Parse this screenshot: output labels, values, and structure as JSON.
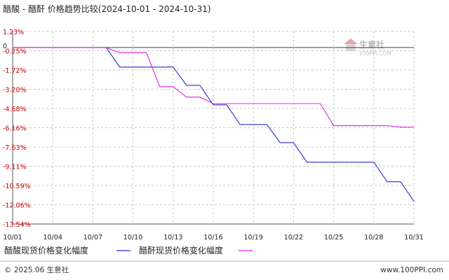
{
  "chart_data": {
    "type": "line",
    "title": "醋酸 - 醋酐 价格趋势比较(2024-10-01 - 2024-10-31)",
    "x": [
      "10/01",
      "10/02",
      "10/03",
      "10/04",
      "10/05",
      "10/06",
      "10/07",
      "10/08",
      "10/09",
      "10/10",
      "10/11",
      "10/12",
      "10/13",
      "10/14",
      "10/15",
      "10/16",
      "10/17",
      "10/18",
      "10/19",
      "10/20",
      "10/21",
      "10/22",
      "10/23",
      "10/24",
      "10/25",
      "10/26",
      "10/27",
      "10/28",
      "10/29",
      "10/30",
      "10/31"
    ],
    "x_tick_labels": [
      "10/01",
      "10/04",
      "10/07",
      "10/10",
      "10/13",
      "10/16",
      "10/19",
      "10/22",
      "10/25",
      "10/28",
      "10/31"
    ],
    "y_tick_labels": [
      "1.23%",
      "-0.25%",
      "-1.72%",
      "-3.20%",
      "-4.68%",
      "-6.16%",
      "-7.63%",
      "-9.11%",
      "-10.59%",
      "-12.06%",
      "-13.54%"
    ],
    "zero_label": "0",
    "ylim": [
      -13.54,
      1.23
    ],
    "series": [
      {
        "name": "醋酸现货价格变化幅度",
        "color": "#2a2acc",
        "values": [
          0,
          0,
          0,
          0,
          0,
          0,
          0,
          0,
          -1.5,
          -1.5,
          -1.5,
          -1.5,
          -1.5,
          -2.9,
          -2.9,
          -4.4,
          -4.4,
          -5.9,
          -5.9,
          -5.9,
          -7.3,
          -7.3,
          -8.8,
          -8.8,
          -8.8,
          -8.8,
          -8.8,
          -8.8,
          -10.3,
          -10.3,
          -11.8
        ]
      },
      {
        "name": "醋酐现货价格变化幅度",
        "color": "#e020e0",
        "values": [
          0,
          0,
          0,
          0,
          0,
          0,
          0,
          0,
          -0.4,
          -0.4,
          -0.4,
          -3.0,
          -3.0,
          -3.8,
          -3.8,
          -4.3,
          -4.3,
          -4.3,
          -4.3,
          -4.3,
          -4.3,
          -4.3,
          -4.3,
          -4.3,
          -6.0,
          -6.0,
          -6.0,
          -6.0,
          -6.0,
          -6.1,
          -6.1
        ]
      }
    ],
    "grid": true,
    "legend_position": "bottom-left"
  },
  "watermark": {
    "brand": "生意社",
    "url": "100PPI.COM"
  },
  "footer": {
    "left": "© 2025.06 生意社",
    "right": "www.100PPI.com"
  }
}
